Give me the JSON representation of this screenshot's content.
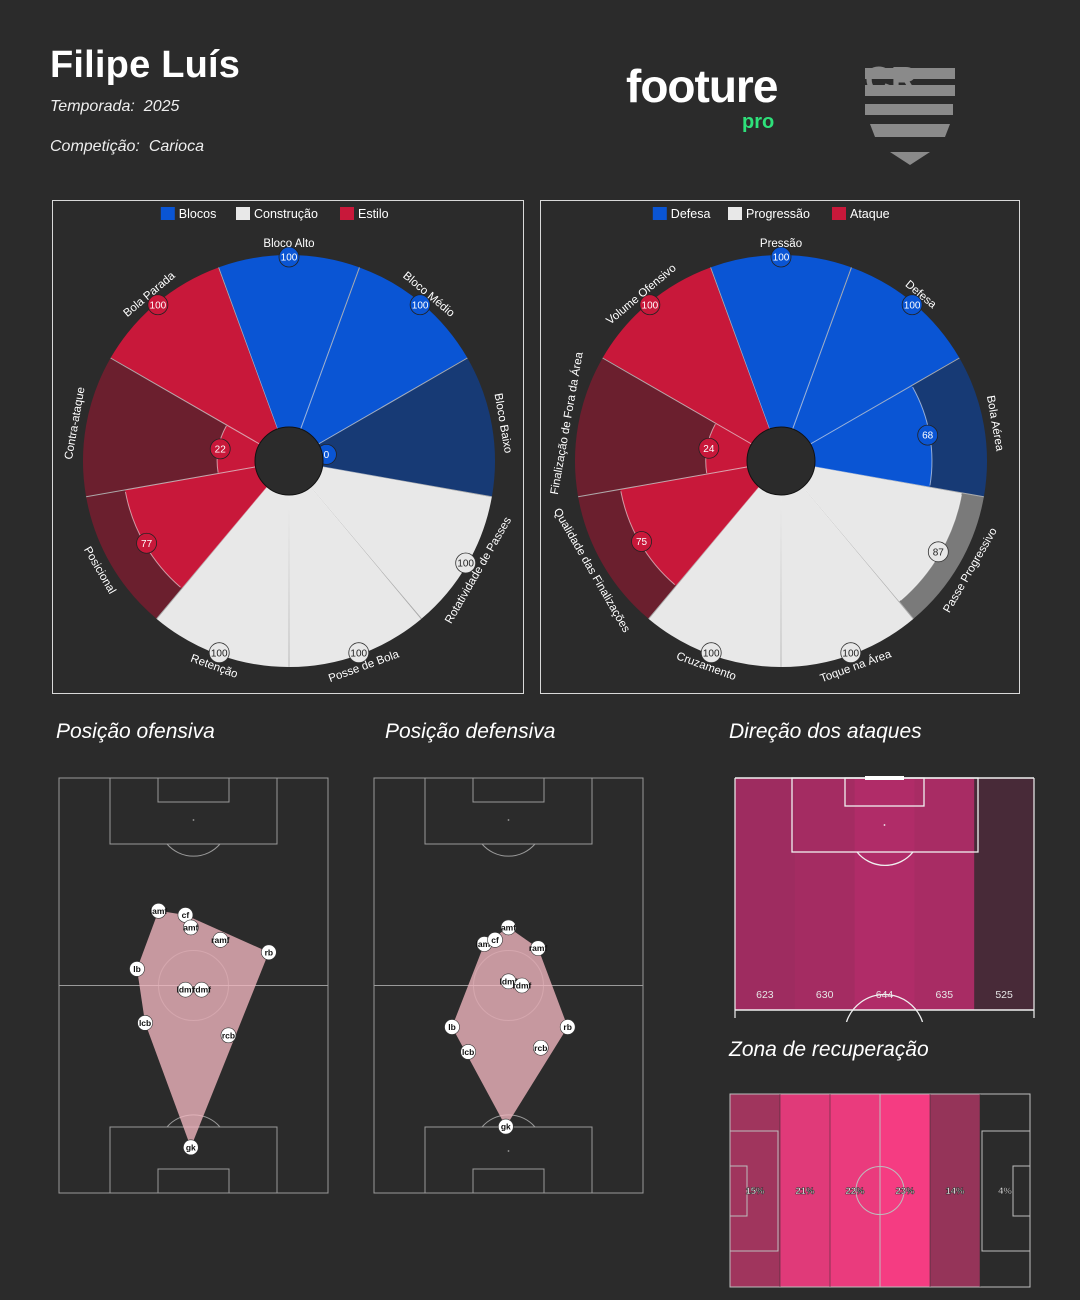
{
  "header": {
    "player_name": "Filipe Luís",
    "season_label": "Temporada:",
    "season_value": "2025",
    "competition_label": "Competição:",
    "competition_value": "Carioca",
    "brand_name": "footure",
    "brand_sub": "pro",
    "brand_color": "#2ee07a",
    "club_logo": "flamengo-crest-icon"
  },
  "chart_data": [
    {
      "type": "pizza",
      "max": 100,
      "legend": [
        {
          "name": "Blocos",
          "color": "#0a55d4"
        },
        {
          "name": "Construção",
          "color": "#e8e8e8"
        },
        {
          "name": "Estilo",
          "color": "#c8183a"
        }
      ],
      "categories": [
        "Bloco Alto",
        "Bloco Médio",
        "Bloco Baixo",
        "Rotatividade de Passes",
        "Posse de Bola",
        "Retenção",
        "Posicional",
        "Contra-ataque",
        "Bola Parada"
      ],
      "values": [
        100,
        100,
        0,
        100,
        100,
        100,
        77,
        22,
        100
      ],
      "groups": [
        "Blocos",
        "Blocos",
        "Blocos",
        "Construção",
        "Construção",
        "Construção",
        "Estilo",
        "Estilo",
        "Estilo"
      ]
    },
    {
      "type": "pizza",
      "max": 100,
      "legend": [
        {
          "name": "Defesa",
          "color": "#0a55d4"
        },
        {
          "name": "Progressão",
          "color": "#e8e8e8"
        },
        {
          "name": "Ataque",
          "color": "#c8183a"
        }
      ],
      "categories": [
        "Pressão",
        "Defesa",
        "Bola Aérea",
        "Passe Progressivo",
        "Toque na Área",
        "Cruzamento",
        "Qualidade das Finalizações",
        "Finalização de Fora da Área",
        "Volume Ofensivo"
      ],
      "values": [
        100,
        100,
        68,
        87,
        100,
        100,
        75,
        24,
        100
      ],
      "groups": [
        "Defesa",
        "Defesa",
        "Defesa",
        "Progressão",
        "Progressão",
        "Progressão",
        "Ataque",
        "Ataque",
        "Ataque"
      ]
    },
    {
      "type": "scatter",
      "title": "Posição ofensiva",
      "points": [
        {
          "label": "cf",
          "x": 47,
          "y": 67
        },
        {
          "label": "amf",
          "x": 49,
          "y": 64
        },
        {
          "label": "lamf",
          "x": 37,
          "y": 68
        },
        {
          "label": "ramf",
          "x": 60,
          "y": 61
        },
        {
          "label": "rb",
          "x": 78,
          "y": 58
        },
        {
          "label": "lb",
          "x": 29,
          "y": 54
        },
        {
          "label": "ldmf",
          "x": 47,
          "y": 49
        },
        {
          "label": "rdmf",
          "x": 53,
          "y": 49
        },
        {
          "label": "lcb",
          "x": 32,
          "y": 41
        },
        {
          "label": "rcb",
          "x": 63,
          "y": 38
        },
        {
          "label": "gk",
          "x": 49,
          "y": 11
        }
      ]
    },
    {
      "type": "scatter",
      "title": "Posição defensiva",
      "points": [
        {
          "label": "amf",
          "x": 50,
          "y": 64
        },
        {
          "label": "lamf",
          "x": 41,
          "y": 60
        },
        {
          "label": "cf",
          "x": 45,
          "y": 61
        },
        {
          "label": "ramf",
          "x": 61,
          "y": 59
        },
        {
          "label": "ldmf",
          "x": 50,
          "y": 51
        },
        {
          "label": "rdmf",
          "x": 55,
          "y": 50
        },
        {
          "label": "lb",
          "x": 29,
          "y": 40
        },
        {
          "label": "rb",
          "x": 72,
          "y": 40
        },
        {
          "label": "lcb",
          "x": 35,
          "y": 34
        },
        {
          "label": "rcb",
          "x": 62,
          "y": 35
        },
        {
          "label": "gk",
          "x": 49,
          "y": 16
        }
      ]
    },
    {
      "type": "heatmap",
      "title": "Direção dos ataques",
      "values": [
        623,
        630,
        644,
        635,
        525
      ]
    },
    {
      "type": "heatmap",
      "title": "Zona de recuperação",
      "values": [
        "15%",
        "21%",
        "22%",
        "23%",
        "14%",
        "4%"
      ]
    }
  ]
}
